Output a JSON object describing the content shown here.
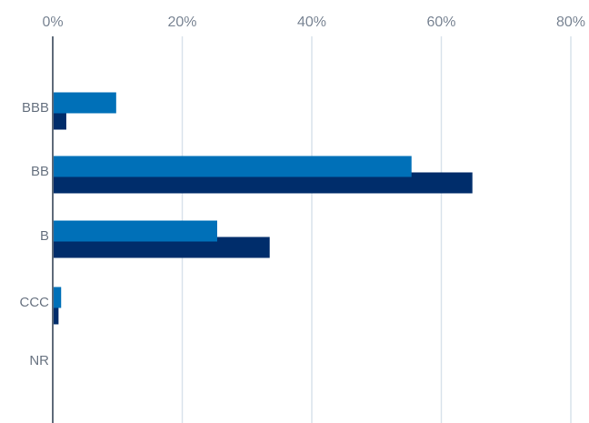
{
  "chart_data": {
    "type": "bar",
    "orientation": "horizontal",
    "categories": [
      "BBB",
      "BB",
      "B",
      "CCC",
      "NR"
    ],
    "series": [
      {
        "values": [
          9.8,
          55.4,
          25.4,
          1.3,
          0
        ],
        "color": "#0070b8"
      },
      {
        "values": [
          2.1,
          64.8,
          33.5,
          0.9,
          0
        ],
        "color": "#002d6b"
      }
    ],
    "x_ticks": [
      "0%",
      "20%",
      "40%",
      "60%",
      "80%"
    ],
    "xlim": [
      0,
      80
    ],
    "grid": true,
    "legend": false,
    "colors": {
      "grid": "#d9e3ec",
      "axis": "#5f6b7a",
      "tick_text": "#7a8594"
    }
  }
}
